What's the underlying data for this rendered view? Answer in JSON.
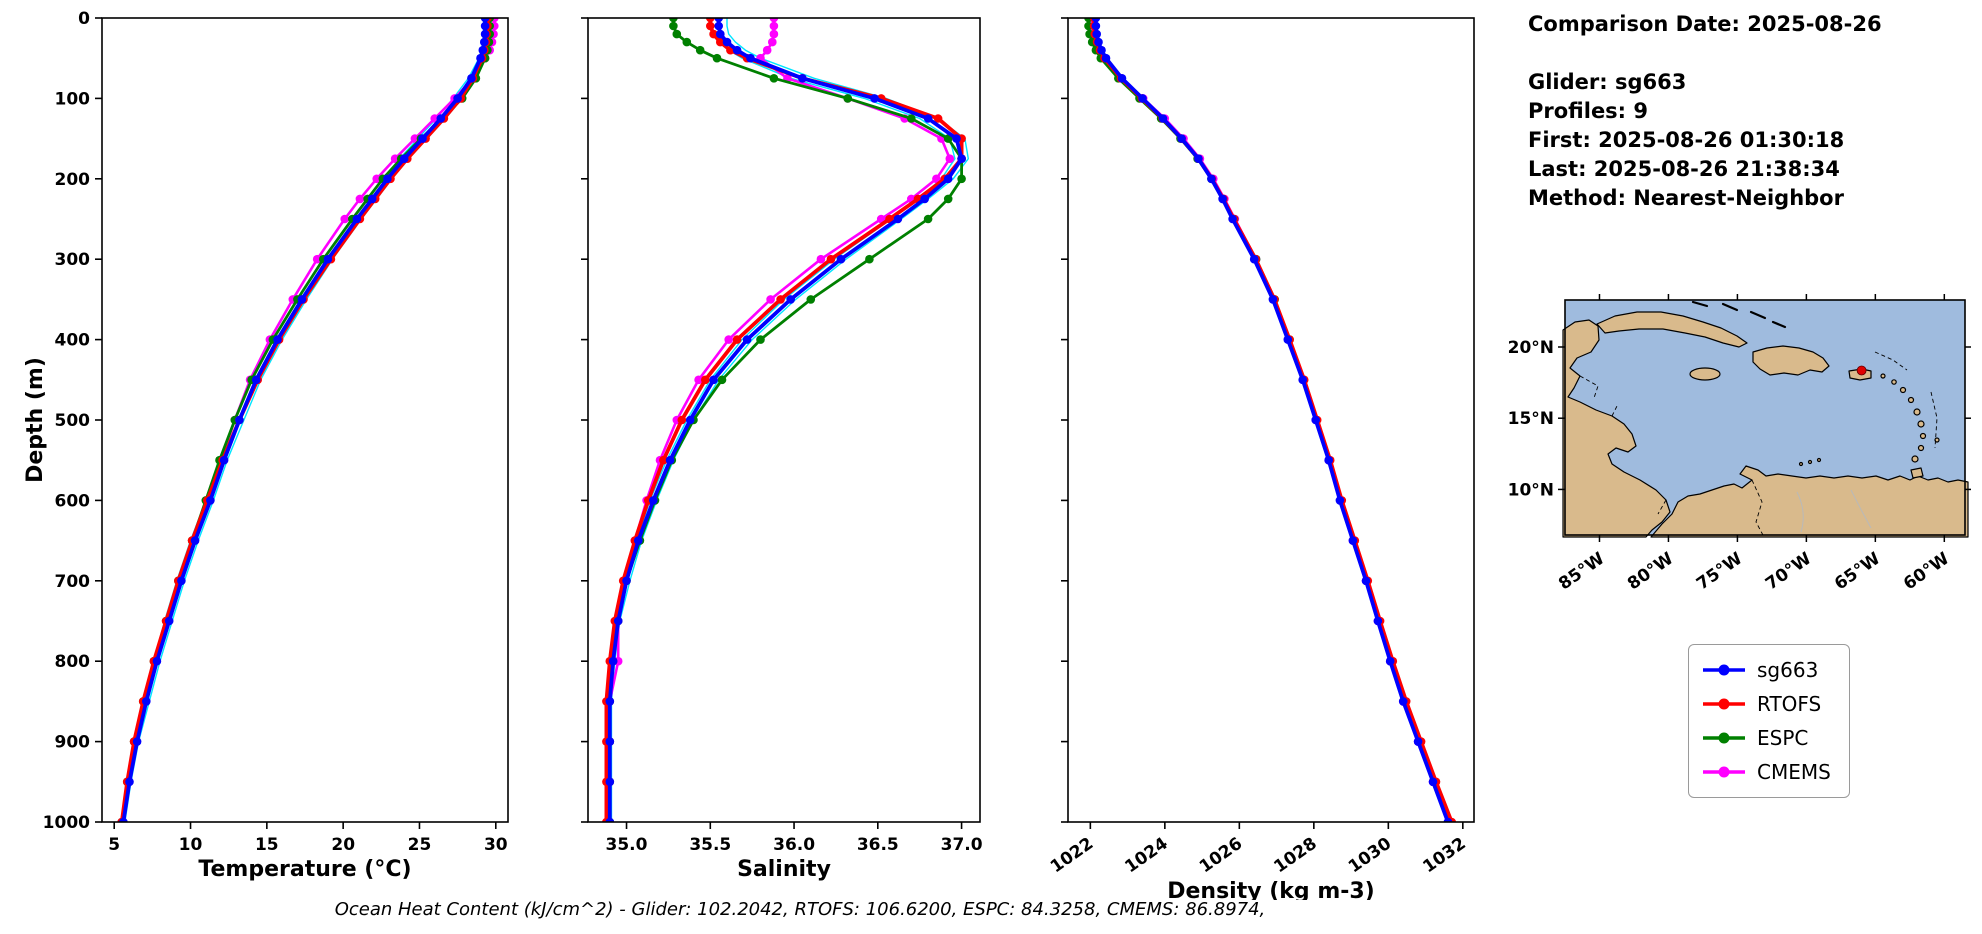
{
  "info": {
    "comparison_date": "Comparison Date: 2025-08-26",
    "glider": "Glider: sg663",
    "profiles": "Profiles: 9",
    "first": "First: 2025-08-26 01:30:18",
    "last": "Last: 2025-08-26 21:38:34",
    "method": "Method: Nearest-Neighbor"
  },
  "annotation": {
    "text": "Ocean Heat Content (kJ/cm^2) - Glider: 102.2042,  RTOFS: 106.6200,  ESPC: 84.3258,  CMEMS: 86.8974,"
  },
  "ocean_heat_content_kj_cm2": {
    "Glider": 102.2042,
    "RTOFS": 106.62,
    "ESPC": 84.3258,
    "CMEMS": 86.8974
  },
  "legend": {
    "items": [
      {
        "label": "sg663",
        "color": "#0000ff"
      },
      {
        "label": "RTOFS",
        "color": "#ff0000"
      },
      {
        "label": "ESPC",
        "color": "#008000"
      },
      {
        "label": "CMEMS",
        "color": "#ff00ff"
      }
    ]
  },
  "depth_axis": {
    "label": "Depth (m)",
    "lim": [
      0,
      1000
    ],
    "ticks": [
      0,
      100,
      200,
      300,
      400,
      500,
      600,
      700,
      800,
      900,
      1000
    ]
  },
  "chart_data": [
    {
      "type": "line",
      "xlabel": "Temperature (°C)",
      "ylabel": "Depth (m)",
      "xlim": [
        4.2,
        30.8
      ],
      "xtick_values": [
        5,
        10,
        15,
        20,
        25,
        30
      ],
      "xtick_labels": [
        "5",
        "10",
        "15",
        "20",
        "25",
        "30"
      ],
      "ylim": [
        0,
        1000
      ],
      "depths_m": [
        0,
        10,
        20,
        30,
        40,
        50,
        75,
        100,
        125,
        150,
        175,
        200,
        225,
        250,
        300,
        350,
        400,
        450,
        500,
        550,
        600,
        650,
        700,
        750,
        800,
        850,
        900,
        950,
        1000
      ],
      "series": [
        {
          "name": "glider-profile-1",
          "color": "#00e5ff",
          "lw": 1.4,
          "marker": false,
          "values": [
            29.2,
            29.2,
            29.2,
            29.15,
            29.05,
            28.9,
            28.2,
            27.2,
            26.1,
            24.9,
            23.7,
            22.6,
            21.6,
            20.6,
            18.7,
            17.0,
            15.4,
            14.0,
            12.9,
            11.9,
            11.0,
            10.0,
            9.1,
            8.3,
            7.6,
            6.9,
            6.3,
            5.9,
            5.6
          ]
        },
        {
          "name": "glider-profile-2",
          "color": "#00e5ff",
          "lw": 1.4,
          "marker": false,
          "values": [
            29.4,
            29.4,
            29.4,
            29.35,
            29.25,
            29.1,
            28.6,
            27.8,
            26.7,
            25.5,
            24.3,
            23.2,
            22.2,
            21.2,
            19.3,
            17.6,
            16.0,
            14.6,
            13.5,
            12.4,
            11.5,
            10.5,
            9.6,
            8.8,
            8.0,
            7.3,
            6.6,
            6.1,
            5.7
          ]
        },
        {
          "name": "CMEMS",
          "color": "#ff00ff",
          "lw": 2.6,
          "marker": true,
          "values": [
            29.9,
            29.9,
            29.85,
            29.75,
            29.6,
            29.3,
            28.5,
            27.3,
            26.0,
            24.7,
            23.4,
            22.2,
            21.1,
            20.1,
            18.3,
            16.7,
            15.2,
            13.9,
            12.9,
            12.0,
            11.1,
            10.2,
            9.3,
            8.5,
            7.7,
            7.0,
            6.4,
            5.9,
            5.5
          ]
        },
        {
          "name": "ESPC",
          "color": "#008000",
          "lw": 2.8,
          "marker": true,
          "values": [
            29.6,
            29.6,
            29.6,
            29.55,
            29.45,
            29.3,
            28.7,
            27.8,
            26.5,
            25.1,
            23.8,
            22.6,
            21.6,
            20.6,
            18.7,
            17.0,
            15.4,
            14.0,
            12.9,
            11.9,
            11.0,
            10.1,
            9.2,
            8.4,
            7.6,
            6.9,
            6.3,
            5.85,
            5.5
          ]
        },
        {
          "name": "RTOFS",
          "color": "#ff0000",
          "lw": 3.8,
          "marker": true,
          "values": [
            29.45,
            29.45,
            29.4,
            29.35,
            29.25,
            29.1,
            28.5,
            27.7,
            26.6,
            25.4,
            24.2,
            23.1,
            22.1,
            21.1,
            19.2,
            17.4,
            15.8,
            14.4,
            13.2,
            12.1,
            11.1,
            10.1,
            9.2,
            8.4,
            7.6,
            6.9,
            6.3,
            5.85,
            5.5
          ]
        },
        {
          "name": "sg663",
          "color": "#0000ff",
          "lw": 3.8,
          "marker": true,
          "values": [
            29.3,
            29.3,
            29.3,
            29.25,
            29.15,
            29.0,
            28.4,
            27.5,
            26.4,
            25.2,
            24.0,
            22.9,
            21.9,
            20.9,
            19.0,
            17.3,
            15.7,
            14.3,
            13.2,
            12.2,
            11.3,
            10.3,
            9.4,
            8.6,
            7.8,
            7.1,
            6.5,
            6.0,
            5.6
          ]
        }
      ]
    },
    {
      "type": "line",
      "xlabel": "Salinity",
      "xlim": [
        34.77,
        37.11
      ],
      "xtick_values": [
        35.0,
        35.5,
        36.0,
        36.5,
        37.0
      ],
      "xtick_labels": [
        "35.0",
        "35.5",
        "36.0",
        "36.5",
        "37.0"
      ],
      "ylim": [
        0,
        1000
      ],
      "depths_m": [
        0,
        10,
        20,
        30,
        40,
        50,
        75,
        100,
        125,
        150,
        175,
        200,
        225,
        250,
        300,
        350,
        400,
        450,
        500,
        550,
        600,
        650,
        700,
        750,
        800,
        850,
        900,
        950,
        1000
      ],
      "series": [
        {
          "name": "glider-profile-1",
          "color": "#00e5ff",
          "lw": 1.4,
          "marker": false,
          "values": [
            35.5,
            35.5,
            35.51,
            35.55,
            35.61,
            35.69,
            35.98,
            36.42,
            36.75,
            36.93,
            36.96,
            36.88,
            36.74,
            36.58,
            36.24,
            35.94,
            35.69,
            35.5,
            35.36,
            35.24,
            35.14,
            35.06,
            34.99,
            34.94,
            34.91,
            34.9,
            34.9,
            34.9,
            34.9
          ]
        },
        {
          "name": "glider-profile-2",
          "color": "#00e5ff",
          "lw": 1.4,
          "marker": false,
          "values": [
            35.6,
            35.6,
            35.61,
            35.65,
            35.71,
            35.8,
            36.12,
            36.55,
            36.86,
            37.02,
            37.04,
            36.95,
            36.8,
            36.64,
            36.31,
            36.01,
            35.75,
            35.55,
            35.4,
            35.28,
            35.18,
            35.09,
            35.02,
            34.96,
            34.93,
            34.91,
            34.91,
            34.91,
            34.91
          ]
        },
        {
          "name": "CMEMS",
          "color": "#ff00ff",
          "lw": 2.6,
          "marker": true,
          "values": [
            35.88,
            35.88,
            35.88,
            35.87,
            35.84,
            35.8,
            35.96,
            36.32,
            36.66,
            36.88,
            36.93,
            36.85,
            36.7,
            36.52,
            36.16,
            35.86,
            35.61,
            35.43,
            35.3,
            35.2,
            35.12,
            35.05,
            34.99,
            34.95,
            34.95,
            34.9,
            34.9,
            34.9,
            34.9
          ]
        },
        {
          "name": "ESPC",
          "color": "#008000",
          "lw": 2.8,
          "marker": true,
          "values": [
            35.28,
            35.28,
            35.3,
            35.36,
            35.44,
            35.54,
            35.88,
            36.32,
            36.7,
            36.92,
            37.0,
            37.0,
            36.92,
            36.8,
            36.45,
            36.1,
            35.8,
            35.57,
            35.4,
            35.27,
            35.17,
            35.08,
            35.0,
            34.95,
            34.92,
            34.9,
            34.9,
            34.9,
            34.9
          ]
        },
        {
          "name": "RTOFS",
          "color": "#ff0000",
          "lw": 3.8,
          "marker": true,
          "values": [
            35.5,
            35.5,
            35.52,
            35.56,
            35.62,
            35.72,
            36.05,
            36.52,
            36.86,
            37.0,
            37.0,
            36.9,
            36.74,
            36.57,
            36.22,
            35.92,
            35.66,
            35.47,
            35.33,
            35.22,
            35.13,
            35.05,
            34.98,
            34.93,
            34.9,
            34.88,
            34.88,
            34.88,
            34.88
          ]
        },
        {
          "name": "sg663",
          "color": "#0000ff",
          "lw": 3.8,
          "marker": true,
          "values": [
            35.55,
            35.55,
            35.56,
            35.6,
            35.66,
            35.74,
            36.05,
            36.48,
            36.8,
            36.97,
            37.0,
            36.92,
            36.78,
            36.62,
            36.28,
            35.98,
            35.72,
            35.52,
            35.38,
            35.26,
            35.16,
            35.07,
            35.0,
            34.95,
            34.92,
            34.9,
            34.9,
            34.9,
            34.9
          ]
        }
      ]
    },
    {
      "type": "line",
      "xlabel": "Density (kg m-3)",
      "xlim": [
        1021.4,
        1032.3
      ],
      "xtick_values": [
        1022,
        1024,
        1026,
        1028,
        1030,
        1032
      ],
      "xtick_labels": [
        "1022",
        "1024",
        "1026",
        "1028",
        "1030",
        "1032"
      ],
      "xtick_rotation": -35,
      "ylim": [
        0,
        1000
      ],
      "depths_m": [
        0,
        10,
        20,
        30,
        40,
        50,
        75,
        100,
        125,
        150,
        175,
        200,
        225,
        250,
        300,
        350,
        400,
        450,
        500,
        550,
        600,
        650,
        700,
        750,
        800,
        850,
        900,
        950,
        1000
      ],
      "series": [
        {
          "name": "CMEMS",
          "color": "#ff00ff",
          "lw": 2.6,
          "marker": true,
          "values": [
            1022.05,
            1022.05,
            1022.08,
            1022.14,
            1022.24,
            1022.38,
            1022.84,
            1023.42,
            1024.0,
            1024.5,
            1024.94,
            1025.3,
            1025.6,
            1025.88,
            1026.45,
            1026.94,
            1027.33,
            1027.71,
            1028.05,
            1028.4,
            1028.71,
            1029.05,
            1029.4,
            1029.72,
            1030.05,
            1030.4,
            1030.8,
            1031.2,
            1031.62
          ]
        },
        {
          "name": "ESPC",
          "color": "#008000",
          "lw": 2.8,
          "marker": true,
          "values": [
            1021.95,
            1021.95,
            1021.98,
            1022.05,
            1022.15,
            1022.28,
            1022.75,
            1023.32,
            1023.9,
            1024.42,
            1024.88,
            1025.25,
            1025.57,
            1025.86,
            1026.45,
            1026.95,
            1027.35,
            1027.73,
            1028.07,
            1028.41,
            1028.72,
            1029.06,
            1029.41,
            1029.73,
            1030.06,
            1030.41,
            1030.81,
            1031.21,
            1031.62
          ]
        },
        {
          "name": "RTOFS",
          "color": "#ff0000",
          "lw": 3.8,
          "marker": true,
          "values": [
            1022.1,
            1022.1,
            1022.12,
            1022.18,
            1022.26,
            1022.38,
            1022.82,
            1023.38,
            1023.94,
            1024.45,
            1024.9,
            1025.26,
            1025.57,
            1025.85,
            1026.44,
            1026.94,
            1027.35,
            1027.74,
            1028.09,
            1028.44,
            1028.75,
            1029.1,
            1029.45,
            1029.78,
            1030.12,
            1030.48,
            1030.88,
            1031.28,
            1031.7
          ]
        },
        {
          "name": "sg663",
          "color": "#0000ff",
          "lw": 3.8,
          "marker": true,
          "values": [
            1022.15,
            1022.15,
            1022.17,
            1022.22,
            1022.3,
            1022.42,
            1022.85,
            1023.4,
            1023.95,
            1024.45,
            1024.9,
            1025.25,
            1025.55,
            1025.82,
            1026.4,
            1026.9,
            1027.3,
            1027.7,
            1028.05,
            1028.4,
            1028.7,
            1029.05,
            1029.4,
            1029.72,
            1030.05,
            1030.4,
            1030.8,
            1031.2,
            1031.6
          ]
        }
      ]
    }
  ],
  "map": {
    "extent": {
      "lon_min": -87.5,
      "lon_max": -58.5,
      "lat_min": 6.8,
      "lat_max": 23.3
    },
    "lon_ticks": [
      {
        "value": -85,
        "label": "85°W"
      },
      {
        "value": -80,
        "label": "80°W"
      },
      {
        "value": -75,
        "label": "75°W"
      },
      {
        "value": -70,
        "label": "70°W"
      },
      {
        "value": -65,
        "label": "65°W"
      },
      {
        "value": -60,
        "label": "60°W"
      }
    ],
    "lat_ticks": [
      {
        "value": 20,
        "label": "20°N"
      },
      {
        "value": 15,
        "label": "15°N"
      },
      {
        "value": 10,
        "label": "10°N"
      }
    ],
    "glider_position": {
      "lon": -66.0,
      "lat": 18.35
    },
    "colors": {
      "ocean": "#9fbbde",
      "land": "#d9ba8c",
      "coast": "#000000",
      "marker": "#e00000"
    }
  }
}
